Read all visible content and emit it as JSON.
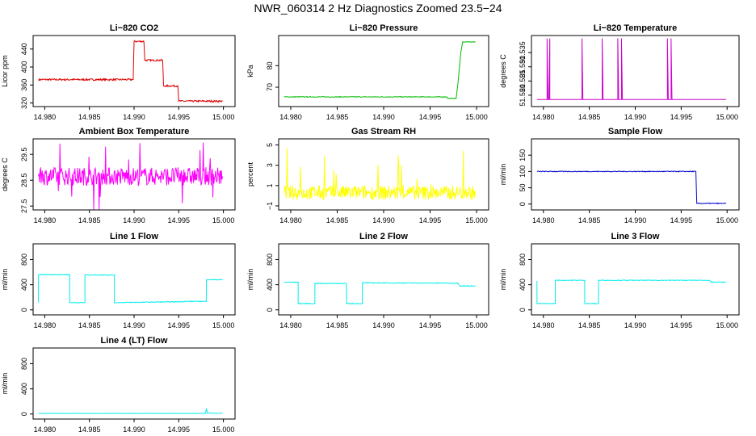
{
  "page_title": "NWR_060314  2 Hz Diagnostics Zoomed 23.5−24",
  "x_ticks": [
    "14.980",
    "14.985",
    "14.990",
    "14.995",
    "15.000"
  ],
  "chart_data": [
    {
      "type": "line",
      "title": "Li−820 CO2",
      "ylabel": "Licor ppm",
      "color": "#dd0000",
      "xlim": [
        14.9787,
        15.0013
      ],
      "ylim": [
        312,
        470
      ],
      "yticks": [
        "320",
        "360",
        "400",
        "440"
      ],
      "ytick_values": [
        320,
        360,
        400,
        440
      ],
      "series": [
        {
          "x": [
            14.9793,
            14.9899,
            14.99,
            14.9911,
            14.9912,
            14.9932,
            14.9933,
            14.9949,
            14.995,
            14.9999
          ],
          "y": [
            372,
            372,
            457,
            457,
            415,
            415,
            358,
            358,
            324,
            324
          ]
        }
      ],
      "noise": 2
    },
    {
      "type": "line",
      "title": "Li−820 Pressure",
      "ylabel": "kPa",
      "color": "#00bb00",
      "xlim": [
        14.9787,
        15.0013
      ],
      "ylim": [
        61,
        94
      ],
      "yticks": [
        "70",
        "80"
      ],
      "ytick_values": [
        70,
        80
      ],
      "series": [
        {
          "x": [
            14.9793,
            14.9968,
            14.9969,
            14.9978,
            14.998,
            14.9983,
            14.9985,
            14.9999
          ],
          "y": [
            65.5,
            65.5,
            64.8,
            64.8,
            72,
            86,
            91,
            91
          ]
        }
      ],
      "noise": 0.15
    },
    {
      "type": "line",
      "title": "Li−820 Temperature",
      "ylabel": "degrees C",
      "color": "#cc00cc",
      "xlim": [
        14.9787,
        15.0013
      ],
      "ylim": [
        51.516,
        51.541
      ],
      "yticks": [
        "51.520",
        "51.525",
        "51.530",
        "51.535"
      ],
      "ytick_values": [
        51.52,
        51.525,
        51.53,
        51.535
      ],
      "series": [
        {
          "x": [
            14.9793,
            14.9804,
            14.9804,
            14.9805,
            14.9806,
            14.9806,
            14.9807,
            14.9807,
            14.9808,
            14.9842,
            14.9842,
            14.9843,
            14.9864,
            14.9864,
            14.9865,
            14.9881,
            14.9881,
            14.9882,
            14.9885,
            14.9885,
            14.9886,
            14.9935,
            14.9935,
            14.9936,
            14.9939,
            14.9939,
            14.994,
            14.9999
          ],
          "y": [
            51.5185,
            51.5185,
            51.54,
            51.5185,
            51.5185,
            51.5185,
            51.54,
            51.5185,
            51.5185,
            51.5185,
            51.54,
            51.5185,
            51.5185,
            51.54,
            51.5185,
            51.5185,
            51.54,
            51.5185,
            51.5185,
            51.54,
            51.5185,
            51.5185,
            51.54,
            51.5185,
            51.5185,
            51.54,
            51.5185,
            51.5185
          ]
        }
      ],
      "noise": 0
    },
    {
      "type": "line",
      "title": "Ambient Box Temperature",
      "ylabel": "degrees C",
      "color": "#ff00ff",
      "xlim": [
        14.9787,
        15.0013
      ],
      "ylim": [
        27.35,
        30.1
      ],
      "yticks": [
        "27.5",
        "28.5",
        "29.5"
      ],
      "ytick_values": [
        27.5,
        28.5,
        29.5
      ],
      "series": [
        {
          "x": [
            14.9793,
            14.9999
          ],
          "y": [
            28.65,
            28.65
          ]
        }
      ],
      "noise": 0.35
    },
    {
      "type": "line",
      "title": "Gas Stream RH",
      "ylabel": "percent",
      "color": "#ffff00",
      "xlim": [
        14.9787,
        15.0013
      ],
      "ylim": [
        -1.4,
        5.6
      ],
      "yticks": [
        "−1",
        "1",
        "3",
        "5"
      ],
      "ytick_values": [
        -1,
        1,
        3,
        5
      ],
      "series": [
        {
          "x": [
            14.9793,
            14.9999
          ],
          "y": [
            0.3,
            0.3
          ]
        }
      ],
      "noise": 0.7
    },
    {
      "type": "line",
      "title": "Sample Flow",
      "ylabel": "ml/min",
      "color": "#0000cc",
      "xlim": [
        14.9787,
        15.0013
      ],
      "ylim": [
        -18,
        200
      ],
      "yticks": [
        "0",
        "50",
        "100",
        "150"
      ],
      "ytick_values": [
        0,
        50,
        100,
        150
      ],
      "series": [
        {
          "x": [
            14.9793,
            14.9966,
            14.9967,
            14.9999
          ],
          "y": [
            100,
            100,
            2,
            2
          ]
        }
      ],
      "noise": 1.2
    },
    {
      "type": "line",
      "title": "Line 1 Flow",
      "ylabel": "ml/min",
      "color": "#00eeee",
      "xlim": [
        14.9787,
        15.0013
      ],
      "ylim": [
        -80,
        1050
      ],
      "yticks": [
        "0",
        "400",
        "800"
      ],
      "ytick_values": [
        0,
        400,
        800
      ],
      "series": [
        {
          "x": [
            14.9793,
            14.9793,
            14.9828,
            14.9828,
            14.9845,
            14.9845,
            14.9878,
            14.9878,
            14.9955,
            14.9955,
            14.9981,
            14.9981,
            14.9999
          ],
          "y": [
            115,
            560,
            560,
            115,
            115,
            555,
            555,
            115,
            130,
            135,
            135,
            480,
            480
          ]
        }
      ],
      "noise": 6
    },
    {
      "type": "line",
      "title": "Line 2 Flow",
      "ylabel": "ml/min",
      "color": "#00eeee",
      "xlim": [
        14.9787,
        15.0013
      ],
      "ylim": [
        -80,
        1050
      ],
      "yticks": [
        "0",
        "400",
        "800"
      ],
      "ytick_values": [
        0,
        400,
        800
      ],
      "series": [
        {
          "x": [
            14.9793,
            14.9808,
            14.9808,
            14.9826,
            14.9826,
            14.986,
            14.986,
            14.9877,
            14.9877,
            14.998,
            14.9982,
            14.9999
          ],
          "y": [
            440,
            440,
            100,
            100,
            420,
            420,
            100,
            100,
            430,
            425,
            380,
            380
          ]
        }
      ],
      "noise": 6
    },
    {
      "type": "line",
      "title": "Line 3 Flow",
      "ylabel": "ml/min",
      "color": "#00eeee",
      "xlim": [
        14.9787,
        15.0013
      ],
      "ylim": [
        -80,
        1050
      ],
      "yticks": [
        "0",
        "400",
        "800"
      ],
      "ytick_values": [
        0,
        400,
        800
      ],
      "series": [
        {
          "x": [
            14.9793,
            14.9793,
            14.9813,
            14.9813,
            14.9845,
            14.9845,
            14.986,
            14.986,
            14.9981,
            14.9983,
            14.9999
          ],
          "y": [
            460,
            100,
            100,
            470,
            470,
            100,
            100,
            470,
            470,
            440,
            440
          ]
        }
      ],
      "noise": 5
    },
    {
      "type": "line",
      "title": "Line 4 (LT) Flow",
      "ylabel": "ml/min",
      "color": "#00eeee",
      "xlim": [
        14.9787,
        15.0013
      ],
      "ylim": [
        -80,
        1050
      ],
      "yticks": [
        "0",
        "400",
        "800"
      ],
      "ytick_values": [
        0,
        400,
        800
      ],
      "series": [
        {
          "x": [
            14.9793,
            14.998,
            14.9981,
            14.9982,
            14.9999
          ],
          "y": [
            10,
            10,
            90,
            15,
            10
          ]
        }
      ],
      "noise": 2
    }
  ]
}
